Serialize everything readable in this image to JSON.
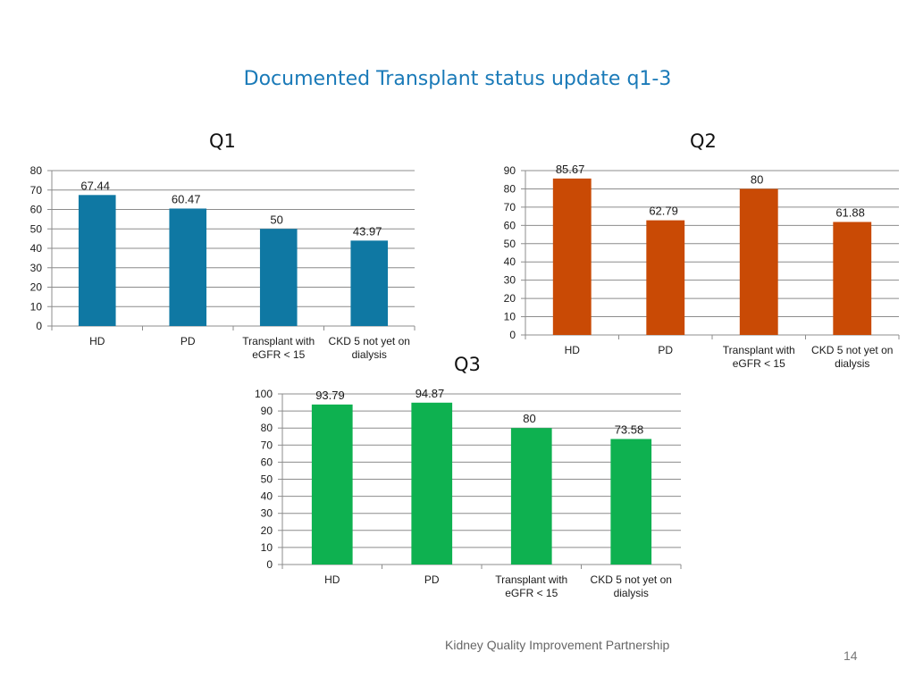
{
  "slide": {
    "title": "Documented Transplant status update q1-3",
    "footer": "Kidney Quality Improvement Partnership",
    "page_number": "14"
  },
  "chart_data": [
    {
      "id": "q1",
      "type": "bar",
      "title": "Q1",
      "categories": [
        [
          "HD"
        ],
        [
          "PD"
        ],
        [
          "Transplant with",
          "eGFR < 15"
        ],
        [
          "CKD 5 not yet on",
          "dialysis"
        ]
      ],
      "values": [
        67.44,
        60.47,
        50,
        43.97
      ],
      "value_labels": [
        "67.44",
        "60.47",
        "50",
        "43.97"
      ],
      "ylim": [
        0,
        80
      ],
      "ystep": 10,
      "color": "#0f78a3",
      "grid": true,
      "xlabel": "",
      "ylabel": ""
    },
    {
      "id": "q2",
      "type": "bar",
      "title": "Q2",
      "categories": [
        [
          "HD"
        ],
        [
          "PD"
        ],
        [
          "Transplant with",
          "eGFR < 15"
        ],
        [
          "CKD 5 not yet on",
          "dialysis"
        ]
      ],
      "values": [
        85.67,
        62.79,
        80,
        61.88
      ],
      "value_labels": [
        "85.67",
        "62.79",
        "80",
        "61.88"
      ],
      "ylim": [
        0,
        90
      ],
      "ystep": 10,
      "color": "#c94a05",
      "grid": true,
      "xlabel": "",
      "ylabel": ""
    },
    {
      "id": "q3",
      "type": "bar",
      "title": "Q3",
      "categories": [
        [
          "HD"
        ],
        [
          "PD"
        ],
        [
          "Transplant with",
          "eGFR < 15"
        ],
        [
          "CKD 5 not yet on",
          "dialysis"
        ]
      ],
      "values": [
        93.79,
        94.87,
        80,
        73.58
      ],
      "value_labels": [
        "93.79",
        "94.87",
        "80",
        "73.58"
      ],
      "ylim": [
        0,
        100
      ],
      "ystep": 10,
      "color": "#0eb150",
      "grid": true,
      "xlabel": "",
      "ylabel": ""
    }
  ]
}
